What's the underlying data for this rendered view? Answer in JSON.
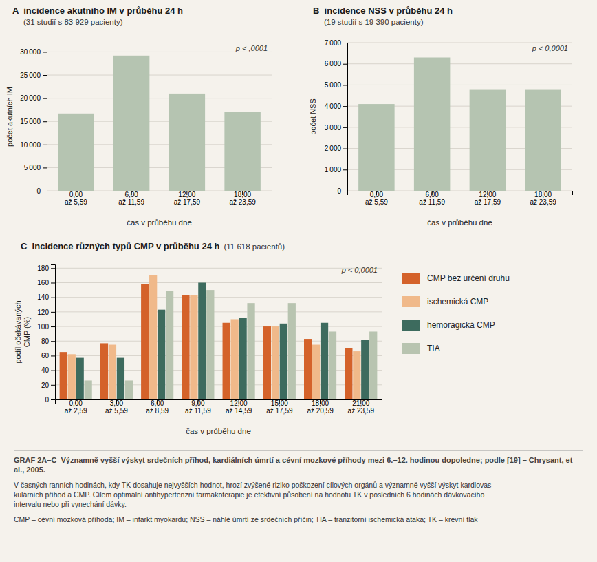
{
  "chart_data": [
    {
      "type": "bar",
      "title": "A  incidence akutního IM v průběhu 24 h",
      "subtitle": "(31 studií s 83 929 pacienty)",
      "ylabel": "počet akutních IM",
      "xlabel": "čas v průběhu dne",
      "categories": [
        "0,00\naž 5,59",
        "6,00\naž 11,59",
        "12,00\naž 17,59",
        "18,00\naž 23,59"
      ],
      "values": [
        16700,
        29200,
        21000,
        17000
      ],
      "color": "#b5c4b1",
      "ylim": [
        0,
        32000
      ],
      "yticks": [
        0,
        {
          "value": 5000,
          "label": "5 000"
        },
        {
          "value": 10000,
          "label": "10 000"
        },
        {
          "value": 15000,
          "label": "15 000"
        },
        {
          "value": 20000,
          "label": "20 000"
        },
        {
          "value": 25000,
          "label": "25 000"
        },
        {
          "value": 30000,
          "label": "30 000"
        }
      ],
      "grid": true,
      "annotations": [
        "p < ,0001"
      ]
    },
    {
      "type": "bar",
      "title": "B  incidence NSS v průběhu 24 h",
      "subtitle": "(19 studií s 19 390 pacienty)",
      "ylabel": "počet NSS",
      "xlabel": "čas v průběhu dne",
      "categories": [
        "0,00\naž 5,59",
        "6,00\naž 11,59",
        "12,00\naž 17,59",
        "18,00\naž 23,59"
      ],
      "values": [
        4100,
        6300,
        4800,
        4800
      ],
      "color": "#b5c4b1",
      "ylim": [
        0,
        7000
      ],
      "yticks": [
        0,
        {
          "value": 1000,
          "label": "1 000"
        },
        {
          "value": 2000,
          "label": "2 000"
        },
        {
          "value": 3000,
          "label": "3 000"
        },
        {
          "value": 4000,
          "label": "4 000"
        },
        {
          "value": 5000,
          "label": "5 000"
        },
        {
          "value": 6000,
          "label": "6 000"
        },
        {
          "value": 7000,
          "label": "7 000"
        }
      ],
      "grid": true,
      "annotations": [
        "p < 0,0001"
      ]
    },
    {
      "type": "bar",
      "title": "C  incidence různých typů CMP v průběhu 24 h",
      "subtitle": "(11 618 pacientů)",
      "ylabel": "podíl očekávaných\nCMP (%)",
      "xlabel": "čas v průběhu dne",
      "categories": [
        "0,00\naž 2,59",
        "3,00\naž 5,59",
        "6,00\naž 8,59",
        "9,00\naž 11,59",
        "12,00\naž 14,59",
        "15,00\naž 17,59",
        "18,00\naž 20,59",
        "21,00\naž 23,59"
      ],
      "series": [
        {
          "name": "CMP bez určení druhu",
          "color": "#d4622a",
          "values": [
            65,
            77,
            158,
            143,
            105,
            100,
            83,
            70
          ]
        },
        {
          "name": "ischemická CMP",
          "color": "#f0b98a",
          "values": [
            62,
            75,
            170,
            143,
            110,
            100,
            75,
            66
          ]
        },
        {
          "name": "hemoragická CMP",
          "color": "#3d6b5e",
          "values": [
            57,
            57,
            123,
            160,
            112,
            104,
            105,
            82
          ]
        },
        {
          "name": "TIA",
          "color": "#b8c4b0",
          "values": [
            26,
            26,
            149,
            150,
            132,
            132,
            93,
            93
          ]
        }
      ],
      "ylim": [
        0,
        185
      ],
      "yticks": [
        0,
        20,
        40,
        60,
        80,
        100,
        120,
        140,
        160,
        180
      ],
      "grid": true,
      "legend": "right",
      "annotations": [
        "p < 0,0001"
      ]
    }
  ],
  "title": "GRAF 2A–C  Významně vyšší výskyt srdečních příhod, kardiálních úmrtí a cévní mozkové příhody mezi 6.–12. hodinou dopoledne; podle [19] – Chrysant, et al., 2005.",
  "annotations": [
    "V časných ranních hodinách, kdy TK dosahuje nejvyšších hodnot, hrozí zvýšené riziko poškození cílových orgánů a významně vyšší výskyt kardiovas-\nkulárních příhod a CMP. Cílem optimální antihypertenzní farmakoterapie je efektivní působení na hodnotu TK v posledních 6 hodinách dávkovacího\nintervalu nebo při vynechání dávky.",
    "CMP – cévní mozková příhoda; IM – infarkt myokardu; NSS – náhlé úmrtí ze srdečních příčin; TIA – tranzitorní ischemická ataka; TK – krevní tlak"
  ]
}
